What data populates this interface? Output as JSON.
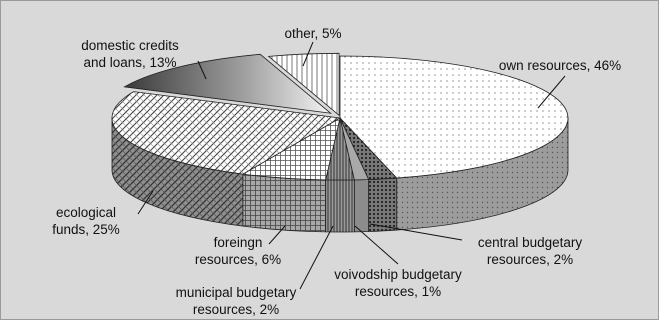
{
  "chart_data": {
    "type": "pie",
    "style": "3d-exploded-free",
    "start_angle_deg": -90,
    "direction": "clockwise",
    "background_color": "#d9d9d9",
    "border_color": "#9a9a9a",
    "slices": [
      {
        "name": "own resources",
        "value": 46,
        "label_lines": [
          "own resources, 46%"
        ],
        "pattern": "dots-fine"
      },
      {
        "name": "central budgetary resources",
        "value": 2,
        "label_lines": [
          "central budgetary",
          "resources, 2%"
        ],
        "pattern": "dots-dense"
      },
      {
        "name": "voivodship budgetary resources",
        "value": 1,
        "label_lines": [
          "voivodship budgetary",
          "resources, 1%"
        ],
        "pattern": "gray-solid"
      },
      {
        "name": "municipal budgetary resources",
        "value": 2,
        "label_lines": [
          "municipal budgetary",
          "resources, 2%"
        ],
        "pattern": "vertical-lines"
      },
      {
        "name": "foreingn resources",
        "value": 6,
        "label_lines": [
          "foreingn",
          "resources, 6%"
        ],
        "pattern": "grid"
      },
      {
        "name": "ecological funds",
        "value": 25,
        "label_lines": [
          "ecological",
          "funds, 25%"
        ],
        "pattern": "diagonal-cross"
      },
      {
        "name": "domestic credits and loans",
        "value": 13,
        "label_lines": [
          "domestic credits",
          "and loans, 13%"
        ],
        "pattern": "gradient"
      },
      {
        "name": "other",
        "value": 5,
        "label_lines": [
          "other, 5%"
        ],
        "pattern": "vertical-lines-sparse"
      }
    ]
  }
}
